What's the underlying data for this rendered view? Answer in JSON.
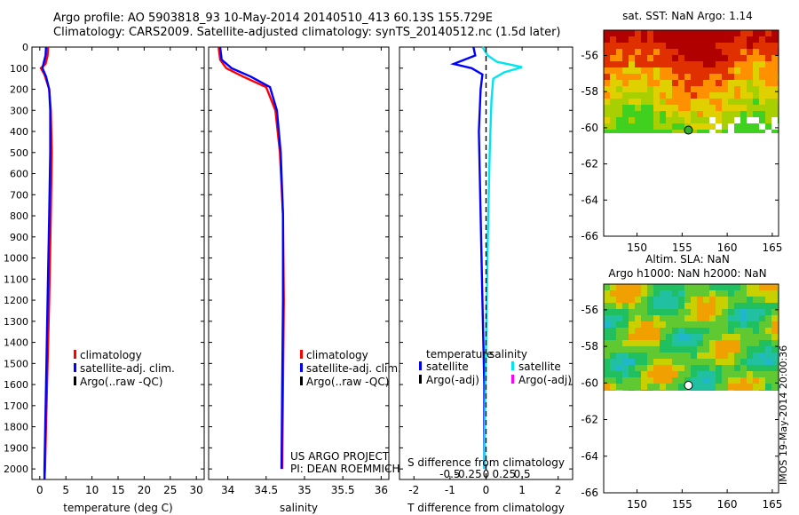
{
  "header": {
    "line1": "Argo profile: AO 5903818_93 10-May-2014 20140510_413 60.13S 155.729E",
    "line2": "Climatology: CARS2009. Satellite-adjusted climatology: synTS_20140512.nc (1.5d later)"
  },
  "stamp": "IMOS 19-May-2014 20:00:36",
  "colors": {
    "climatology": "#ff0000",
    "satellite": "#0000ff",
    "argo": "#000000",
    "sal_satellite": "#00e5ee",
    "sal_argo": "#ff00ff"
  },
  "chart_data": [
    {
      "type": "line",
      "xlabel": "temperature (deg C)",
      "xlim": [
        -1.5,
        31.5
      ],
      "ylim": [
        0,
        2050
      ],
      "x_ticks": [
        0,
        5,
        10,
        15,
        20,
        25,
        30
      ],
      "y_ticks": [
        0,
        100,
        200,
        300,
        400,
        500,
        600,
        700,
        800,
        900,
        1000,
        1100,
        1200,
        1300,
        1400,
        1500,
        1600,
        1700,
        1800,
        1900,
        2000
      ],
      "legend": {
        "position": "lower-center",
        "entries": [
          "climatology",
          "satellite-adj. clim.",
          "Argo(..raw -QC)"
        ]
      },
      "series": [
        {
          "name": "climatology",
          "color": "#ff0000",
          "points": [
            [
              1.6,
              0
            ],
            [
              1.5,
              40
            ],
            [
              1.1,
              80
            ],
            [
              0.2,
              100
            ],
            [
              0.9,
              130
            ],
            [
              1.8,
              200
            ],
            [
              2.1,
              300
            ],
            [
              2.3,
              500
            ],
            [
              2.1,
              800
            ],
            [
              1.8,
              1200
            ],
            [
              1.4,
              1600
            ],
            [
              1.0,
              2000
            ],
            [
              0.9,
              2050
            ]
          ]
        },
        {
          "name": "satellite-adj. clim.",
          "color": "#0000ff",
          "points": [
            [
              1.2,
              0
            ],
            [
              1.1,
              40
            ],
            [
              0.8,
              70
            ],
            [
              0.5,
              100
            ],
            [
              1.2,
              140
            ],
            [
              1.8,
              200
            ],
            [
              2.0,
              300
            ],
            [
              2.0,
              500
            ],
            [
              1.8,
              800
            ],
            [
              1.5,
              1200
            ],
            [
              1.2,
              1600
            ],
            [
              0.9,
              2000
            ],
            [
              0.9,
              2050
            ]
          ]
        }
      ]
    },
    {
      "type": "line",
      "xlabel": "salinity",
      "xlim": [
        33.75,
        36.1
      ],
      "ylim": [
        0,
        2050
      ],
      "x_ticks": [
        34,
        34.5,
        35,
        35.5,
        36
      ],
      "legend": {
        "position": "lower-center",
        "entries": [
          "climatology",
          "satellite-adj. clim.",
          "Argo(..raw -QC)"
        ]
      },
      "notes": [
        "US ARGO PROJECT",
        "PI: DEAN ROEMMICH"
      ],
      "series": [
        {
          "name": "climatology",
          "color": "#ff0000",
          "points": [
            [
              33.88,
              0
            ],
            [
              33.9,
              60
            ],
            [
              33.98,
              100
            ],
            [
              34.2,
              140
            ],
            [
              34.5,
              190
            ],
            [
              34.62,
              300
            ],
            [
              34.68,
              500
            ],
            [
              34.72,
              800
            ],
            [
              34.73,
              1200
            ],
            [
              34.72,
              1600
            ],
            [
              34.71,
              2000
            ]
          ]
        },
        {
          "name": "satellite-adj. clim.",
          "color": "#0000ff",
          "points": [
            [
              33.9,
              0
            ],
            [
              33.92,
              60
            ],
            [
              34.05,
              100
            ],
            [
              34.3,
              140
            ],
            [
              34.55,
              190
            ],
            [
              34.64,
              300
            ],
            [
              34.69,
              500
            ],
            [
              34.72,
              800
            ],
            [
              34.72,
              1200
            ],
            [
              34.71,
              1600
            ],
            [
              34.7,
              2000
            ]
          ]
        }
      ]
    },
    {
      "type": "line",
      "xlabel": "T difference from climatology",
      "xlabel_top": "S difference from climatology",
      "xlim": [
        -2.4,
        2.4
      ],
      "x_ticks": [
        -2,
        -1,
        0,
        1,
        2
      ],
      "x_ticks_sal": [
        "-0.5",
        "-0.25",
        "0",
        "0.25",
        "0.5"
      ],
      "legend": {
        "position": "lower-center",
        "titles": [
          "temperature",
          "salinity"
        ],
        "entries": [
          "satellite",
          "Argo(-adj)",
          "satellite",
          "Argo(-adj)"
        ]
      },
      "series": [
        {
          "name": "satellite",
          "color": "#0000ff",
          "points": [
            [
              -0.35,
              0
            ],
            [
              -0.3,
              40
            ],
            [
              -0.6,
              60
            ],
            [
              -0.9,
              80
            ],
            [
              -0.4,
              100
            ],
            [
              -0.1,
              130
            ],
            [
              -0.15,
              200
            ],
            [
              -0.2,
              400
            ],
            [
              -0.15,
              800
            ],
            [
              -0.1,
              1200
            ],
            [
              -0.05,
              1600
            ],
            [
              -0.05,
              2000
            ]
          ]
        },
        {
          "name": "sal-satellite",
          "color": "#00e5ee",
          "points": [
            [
              -0.1,
              0
            ],
            [
              0.05,
              40
            ],
            [
              0.3,
              70
            ],
            [
              1.0,
              95
            ],
            [
              0.5,
              120
            ],
            [
              0.2,
              150
            ],
            [
              0.15,
              250
            ],
            [
              0.1,
              500
            ],
            [
              0.05,
              900
            ],
            [
              0.0,
              1400
            ],
            [
              -0.05,
              2000
            ]
          ]
        }
      ]
    },
    {
      "type": "heatmap",
      "title": "sat. SST: NaN Argo: 1.14",
      "xlim": [
        146.3,
        165.7
      ],
      "ylim": [
        -66,
        -54.6
      ],
      "x_ticks": [
        150,
        155,
        160,
        165
      ],
      "y_ticks": [
        -56,
        -58,
        -60,
        -62,
        -64,
        -66
      ],
      "marker": [
        155.7,
        -60.13
      ]
    },
    {
      "type": "heatmap",
      "title": "Altim. SLA: NaN",
      "subtitle": "Argo h1000: NaN h2000: NaN",
      "xlim": [
        146.3,
        165.7
      ],
      "ylim": [
        -66,
        -54.6
      ],
      "x_ticks": [
        150,
        155,
        160,
        165
      ],
      "y_ticks": [
        -56,
        -58,
        -60,
        -62,
        -64,
        -66
      ],
      "marker": [
        155.7,
        -60.13
      ]
    }
  ]
}
